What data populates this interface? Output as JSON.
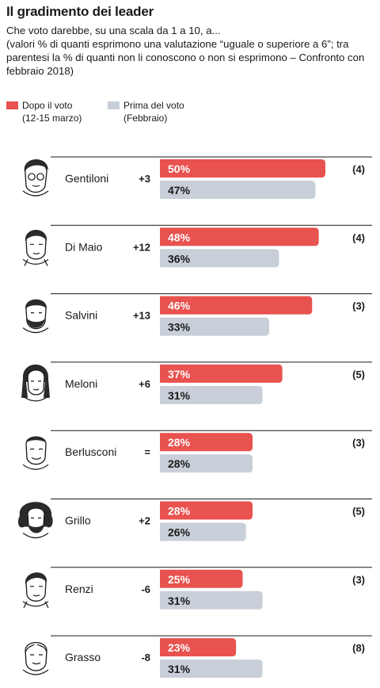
{
  "header": {
    "title": "Il gradimento dei leader",
    "subtitle_line1": "Che voto darebbe, su una scala da 1 a 10, a...",
    "subtitle_line2": "(valori % di quanti esprimono una valutazione “uguale o superiore a 6”; tra parentesi la % di quanti non li conoscono o non si esprimono – Confronto con febbraio 2018)"
  },
  "legend": {
    "after": {
      "label": "Dopo il voto",
      "sub": "(12-15 marzo)",
      "color": "#e8524f"
    },
    "before": {
      "label": "Prima del voto",
      "sub": "(Febbraio)",
      "color": "#c8cfd8"
    }
  },
  "colors": {
    "after": "#e8524f",
    "before": "#c8cfd8",
    "rule": "#1a1a1a"
  },
  "chart_data": {
    "type": "bar",
    "orientation": "horizontal",
    "categories": [
      "Gentiloni",
      "Di Maio",
      "Salvini",
      "Meloni",
      "Berlusconi",
      "Grillo",
      "Renzi",
      "Grasso"
    ],
    "series": [
      {
        "name": "Dopo il voto",
        "values": [
          50,
          48,
          46,
          37,
          28,
          28,
          25,
          23
        ]
      },
      {
        "name": "Prima del voto",
        "values": [
          47,
          36,
          33,
          31,
          28,
          26,
          31,
          31
        ]
      }
    ],
    "value_labels_after": [
      "50%",
      "48%",
      "46%",
      "37%",
      "28%",
      "28%",
      "25%",
      "23%"
    ],
    "value_labels_before": [
      "47%",
      "36%",
      "33%",
      "31%",
      "28%",
      "26%",
      "31%",
      "31%"
    ],
    "change": [
      "+3",
      "+12",
      "+13",
      "+6",
      "=",
      "+2",
      "-6",
      "-8"
    ],
    "no_opinion": [
      "(4)",
      "(4)",
      "(3)",
      "(5)",
      "(3)",
      "(5)",
      "(3)",
      "(8)"
    ],
    "portraits": [
      "portrait-gentiloni",
      "portrait-di-maio",
      "portrait-salvini",
      "portrait-meloni",
      "portrait-berlusconi",
      "portrait-grillo",
      "portrait-renzi",
      "portrait-grasso"
    ],
    "xlim": [
      0,
      100
    ]
  }
}
